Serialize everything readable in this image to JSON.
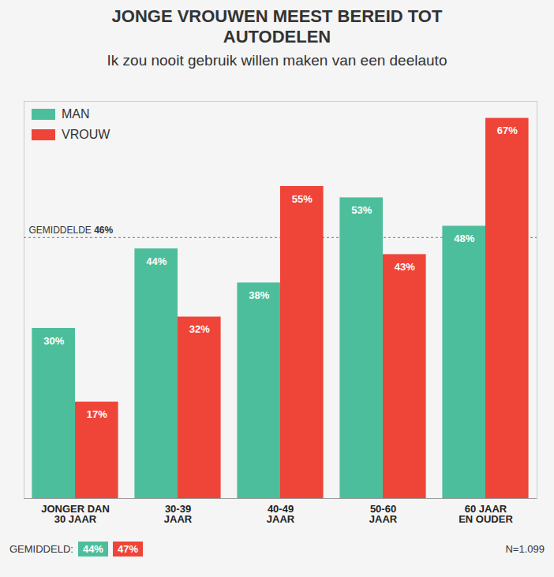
{
  "chart_data": {
    "type": "bar",
    "title": "JONGE VROUWEN MEEST BEREID TOT AUTODELEN",
    "subtitle": "Ik zou nooit gebruik willen maken van een deelauto",
    "categories": [
      "JONGER DAN 30 JAAR",
      "30-39 JAAR",
      "40-49 JAAR",
      "50-60 JAAR",
      "60 JAAR EN OUDER"
    ],
    "series": [
      {
        "name": "MAN",
        "color": "#4dbe9b",
        "values": [
          30,
          44,
          38,
          53,
          48
        ],
        "value_labels": [
          "30%",
          "44%",
          "38%",
          "53%",
          "48%"
        ],
        "average": 44,
        "average_label": "44%"
      },
      {
        "name": "VROUW",
        "color": "#ef4438",
        "values": [
          17,
          32,
          55,
          43,
          67
        ],
        "value_labels": [
          "17%",
          "32%",
          "55%",
          "43%",
          "67%"
        ],
        "average": 47,
        "average_label": "47%"
      }
    ],
    "ylim": [
      0,
      70
    ],
    "yticks": [],
    "tick_labels": "x",
    "grid": false,
    "legend": "top-left",
    "data_labels": true,
    "reference_line": {
      "text": "GEMIDDELDE",
      "value": 46,
      "label": "46%"
    },
    "average_caption": "GEMIDDELD:",
    "note": "N=1.099"
  }
}
